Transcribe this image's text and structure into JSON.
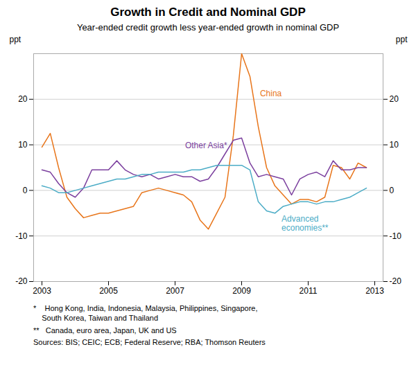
{
  "chart_data": {
    "type": "line",
    "title": "Growth in Credit and Nominal GDP",
    "subtitle": "Year-ended credit growth less year-ended growth in nominal GDP",
    "ylabel": "ppt",
    "y2label": "ppt",
    "x": [
      2003.0,
      2003.25,
      2003.5,
      2003.75,
      2004.0,
      2004.25,
      2004.5,
      2004.75,
      2005.0,
      2005.25,
      2005.5,
      2005.75,
      2006.0,
      2006.25,
      2006.5,
      2006.75,
      2007.0,
      2007.25,
      2007.5,
      2007.75,
      2008.0,
      2008.25,
      2008.5,
      2008.75,
      2009.0,
      2009.25,
      2009.5,
      2009.75,
      2010.0,
      2010.25,
      2010.5,
      2010.75,
      2011.0,
      2011.25,
      2011.5,
      2011.75,
      2012.0,
      2012.25,
      2012.5,
      2012.75
    ],
    "series": [
      {
        "name": "China",
        "color": "#E8751A",
        "values": [
          9.5,
          12.5,
          5.0,
          -1.5,
          -4.0,
          -6.0,
          -5.5,
          -5.0,
          -5.0,
          -4.5,
          -4.0,
          -3.5,
          -0.5,
          0.0,
          0.5,
          0.0,
          -0.5,
          -1.0,
          -2.5,
          -6.5,
          -8.5,
          -5.0,
          -1.5,
          12.0,
          30.0,
          25.0,
          14.0,
          5.0,
          1.0,
          -1.0,
          -3.0,
          -2.0,
          -2.0,
          -2.5,
          -1.5,
          5.5,
          5.0,
          2.5,
          6.0,
          5.0
        ]
      },
      {
        "name": "Other Asia*",
        "color": "#7B3F9E",
        "values": [
          4.5,
          4.0,
          1.5,
          -0.5,
          -1.5,
          0.5,
          4.5,
          4.5,
          4.5,
          6.5,
          4.5,
          3.5,
          3.0,
          3.5,
          2.5,
          3.0,
          3.5,
          3.0,
          3.0,
          2.0,
          2.5,
          5.0,
          8.0,
          11.0,
          11.5,
          6.0,
          3.0,
          3.5,
          3.0,
          2.5,
          -1.0,
          2.5,
          3.5,
          4.0,
          3.0,
          6.5,
          4.5,
          4.5,
          5.0,
          5.0
        ]
      },
      {
        "name": "Advanced economies**",
        "color": "#4BACC6",
        "values": [
          1.0,
          0.5,
          -0.5,
          -0.5,
          0.0,
          0.5,
          1.0,
          1.5,
          2.0,
          2.5,
          2.5,
          3.0,
          3.5,
          3.5,
          4.0,
          4.0,
          4.0,
          4.0,
          4.5,
          4.5,
          5.0,
          5.5,
          5.5,
          5.5,
          5.5,
          4.5,
          -2.5,
          -4.5,
          -5.0,
          -3.5,
          -3.0,
          -2.5,
          -2.5,
          -3.0,
          -2.5,
          -2.5,
          -2.0,
          -1.5,
          -0.5,
          0.5
        ]
      }
    ],
    "xlim": [
      2002.75,
      2013.25
    ],
    "xticks": [
      2003,
      2005,
      2007,
      2009,
      2011,
      2013
    ],
    "ylim": [
      -20,
      30
    ],
    "yticks": [
      -20,
      -10,
      0,
      10,
      20
    ],
    "y2lim": [
      -20,
      30
    ],
    "y2ticks": [
      -20,
      -10,
      0,
      10,
      20
    ],
    "grid": true,
    "annotations": [
      {
        "text": "China",
        "x": 2009.55,
        "y": 22.0,
        "color": "#E8751A"
      },
      {
        "text": "Other Asia*",
        "x": 2007.3,
        "y": 10.5,
        "color": "#7B3F9E"
      },
      {
        "text": "Advanced",
        "x": 2010.2,
        "y": -5.5,
        "color": "#4BACC6"
      },
      {
        "text": "economies**",
        "x": 2010.2,
        "y": -7.5,
        "color": "#4BACC6"
      }
    ],
    "footnotes": [
      "*    Hong Kong, India, Indonesia, Malaysia, Philippines, Singapore,\n    South Korea, Taiwan and Thailand",
      "**   Canada, euro area, Japan, UK and US"
    ],
    "sources": "Sources: BIS; CEIC; ECB; Federal Reserve; RBA; Thomson Reuters"
  }
}
